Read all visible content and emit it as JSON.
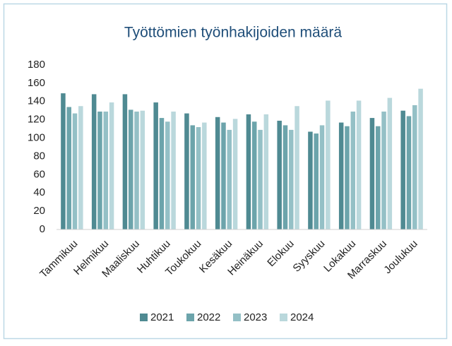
{
  "chart_data": {
    "type": "bar",
    "title": "Työttömien työnhakijoiden määrä",
    "categories": [
      "Tammikuu",
      "Helmikuu",
      "Maaliskuu",
      "Huhtikuu",
      "Toukokuu",
      "Kesäkuu",
      "Heinäkuu",
      "Elokuu",
      "Syyskuu",
      "Lokakuu",
      "Marraskuu",
      "Joulukuu"
    ],
    "series": [
      {
        "name": "2021",
        "color": "#4f8a92",
        "values": [
          149,
          148,
          148,
          139,
          127,
          123,
          126,
          119,
          107,
          117,
          122,
          130
        ]
      },
      {
        "name": "2022",
        "color": "#6ca4ab",
        "values": [
          134,
          129,
          131,
          122,
          114,
          117,
          118,
          114,
          105,
          113,
          113,
          124
        ]
      },
      {
        "name": "2023",
        "color": "#94c0c6",
        "values": [
          127,
          129,
          129,
          118,
          112,
          109,
          109,
          109,
          114,
          129,
          129,
          136
        ]
      },
      {
        "name": "2024",
        "color": "#bad8dc",
        "values": [
          135,
          139,
          130,
          129,
          117,
          121,
          126,
          135,
          141,
          141,
          144,
          154
        ]
      }
    ],
    "ylim": [
      0,
      180
    ],
    "yticks": [
      0,
      20,
      40,
      60,
      80,
      100,
      120,
      140,
      160,
      180
    ],
    "grid": false,
    "legend": "bottom"
  }
}
